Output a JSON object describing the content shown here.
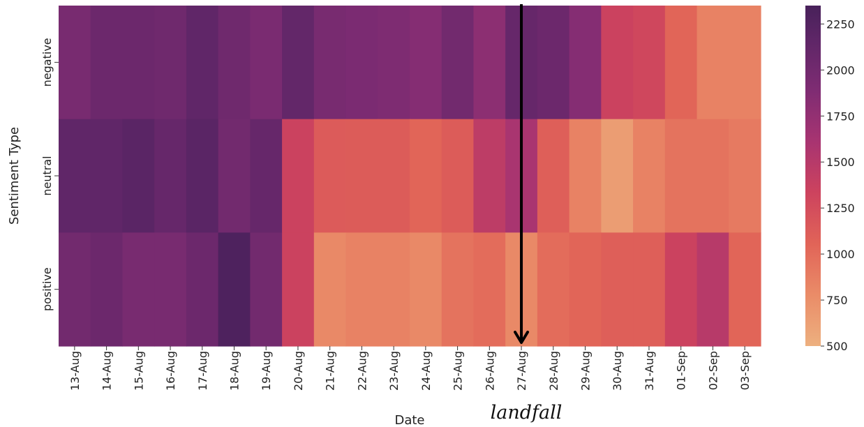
{
  "chart_data": {
    "type": "heatmap",
    "title": "",
    "xlabel": "Date",
    "ylabel": "Sentiment Type",
    "x": [
      "13-Aug",
      "14-Aug",
      "15-Aug",
      "16-Aug",
      "17-Aug",
      "18-Aug",
      "19-Aug",
      "20-Aug",
      "21-Aug",
      "22-Aug",
      "23-Aug",
      "24-Aug",
      "25-Aug",
      "26-Aug",
      "27-Aug",
      "28-Aug",
      "29-Aug",
      "30-Aug",
      "31-Aug",
      "01-Sep",
      "02-Sep",
      "03-Sep"
    ],
    "y": [
      "negative",
      "neutral",
      "positive"
    ],
    "values": [
      [
        1950,
        2050,
        2050,
        2020,
        2150,
        2020,
        1930,
        2120,
        1950,
        1920,
        1900,
        1850,
        2000,
        1800,
        2100,
        2050,
        1850,
        1350,
        1300,
        1050,
        850,
        850
      ],
      [
        2150,
        2150,
        2200,
        2100,
        2200,
        2000,
        2100,
        1350,
        1130,
        1120,
        1120,
        1050,
        1120,
        1450,
        1600,
        1100,
        850,
        650,
        850,
        950,
        950,
        900
      ],
      [
        2000,
        2050,
        1950,
        1950,
        2050,
        2300,
        2000,
        1350,
        800,
        850,
        850,
        800,
        950,
        1000,
        800,
        1000,
        1050,
        1100,
        1100,
        1350,
        1500,
        1050
      ]
    ],
    "colorbar": {
      "min": 500,
      "max": 2350,
      "ticks": [
        500,
        750,
        1000,
        1250,
        1500,
        1750,
        2000,
        2250
      ]
    },
    "colormap": "flare",
    "annotation": {
      "text": "landfall",
      "date": "27-Aug"
    }
  }
}
